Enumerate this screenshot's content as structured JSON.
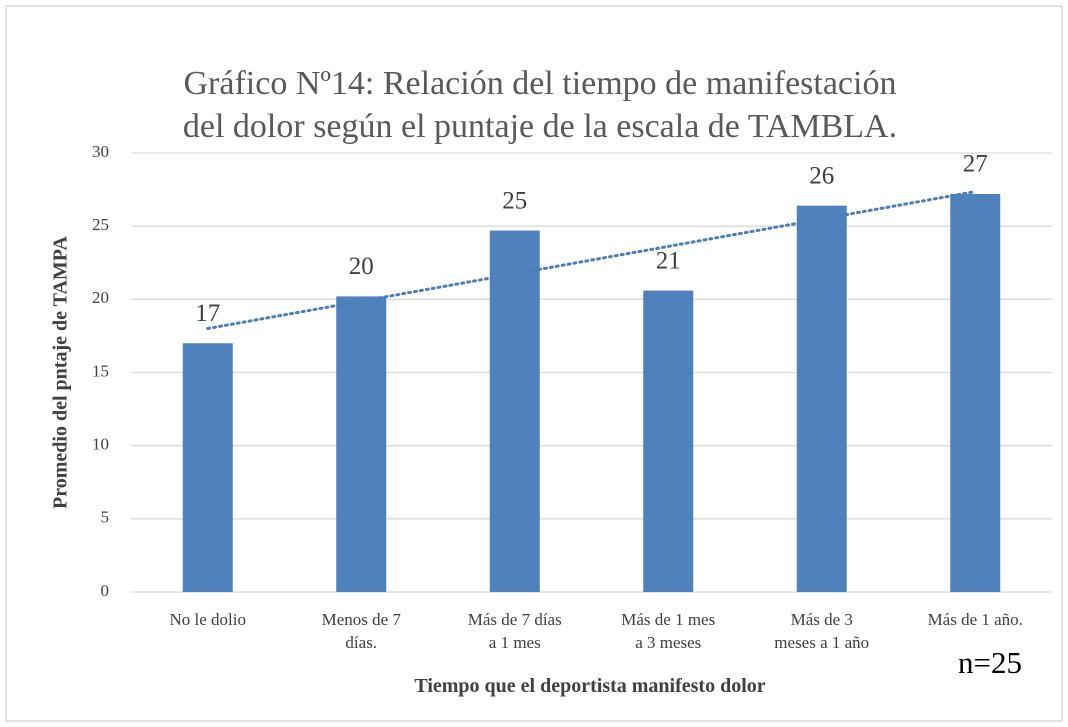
{
  "chart_data": {
    "type": "bar",
    "title": "Gráfico Nº14: Relación del tiempo de manifestación\ndel dolor según el puntaje de la escala de TAMBLA.",
    "x_label": "Tiempo que el deportista manifesto dolor",
    "y_label": "Promedio del pntaje de TAMPA",
    "annotation": "n=25",
    "categories": [
      "No le dolio",
      "Menos de 7\ndías.",
      "Más de 7 días\na 1 mes",
      "Más de 1 mes\na 3 meses",
      "Más de 3\nmeses a 1 año",
      "Más de 1 año."
    ],
    "values": [
      17,
      20.2,
      24.7,
      20.6,
      26.4,
      27.2
    ],
    "value_labels": [
      "17",
      "20",
      "25",
      "21",
      "26",
      "27"
    ],
    "color": "#4f81bd",
    "trendline": {
      "type": "linear",
      "color": "#4a7ebb"
    },
    "ylim": [
      0,
      30
    ],
    "yticks": [
      0,
      5,
      10,
      15,
      20,
      25,
      30
    ],
    "grid": true
  }
}
